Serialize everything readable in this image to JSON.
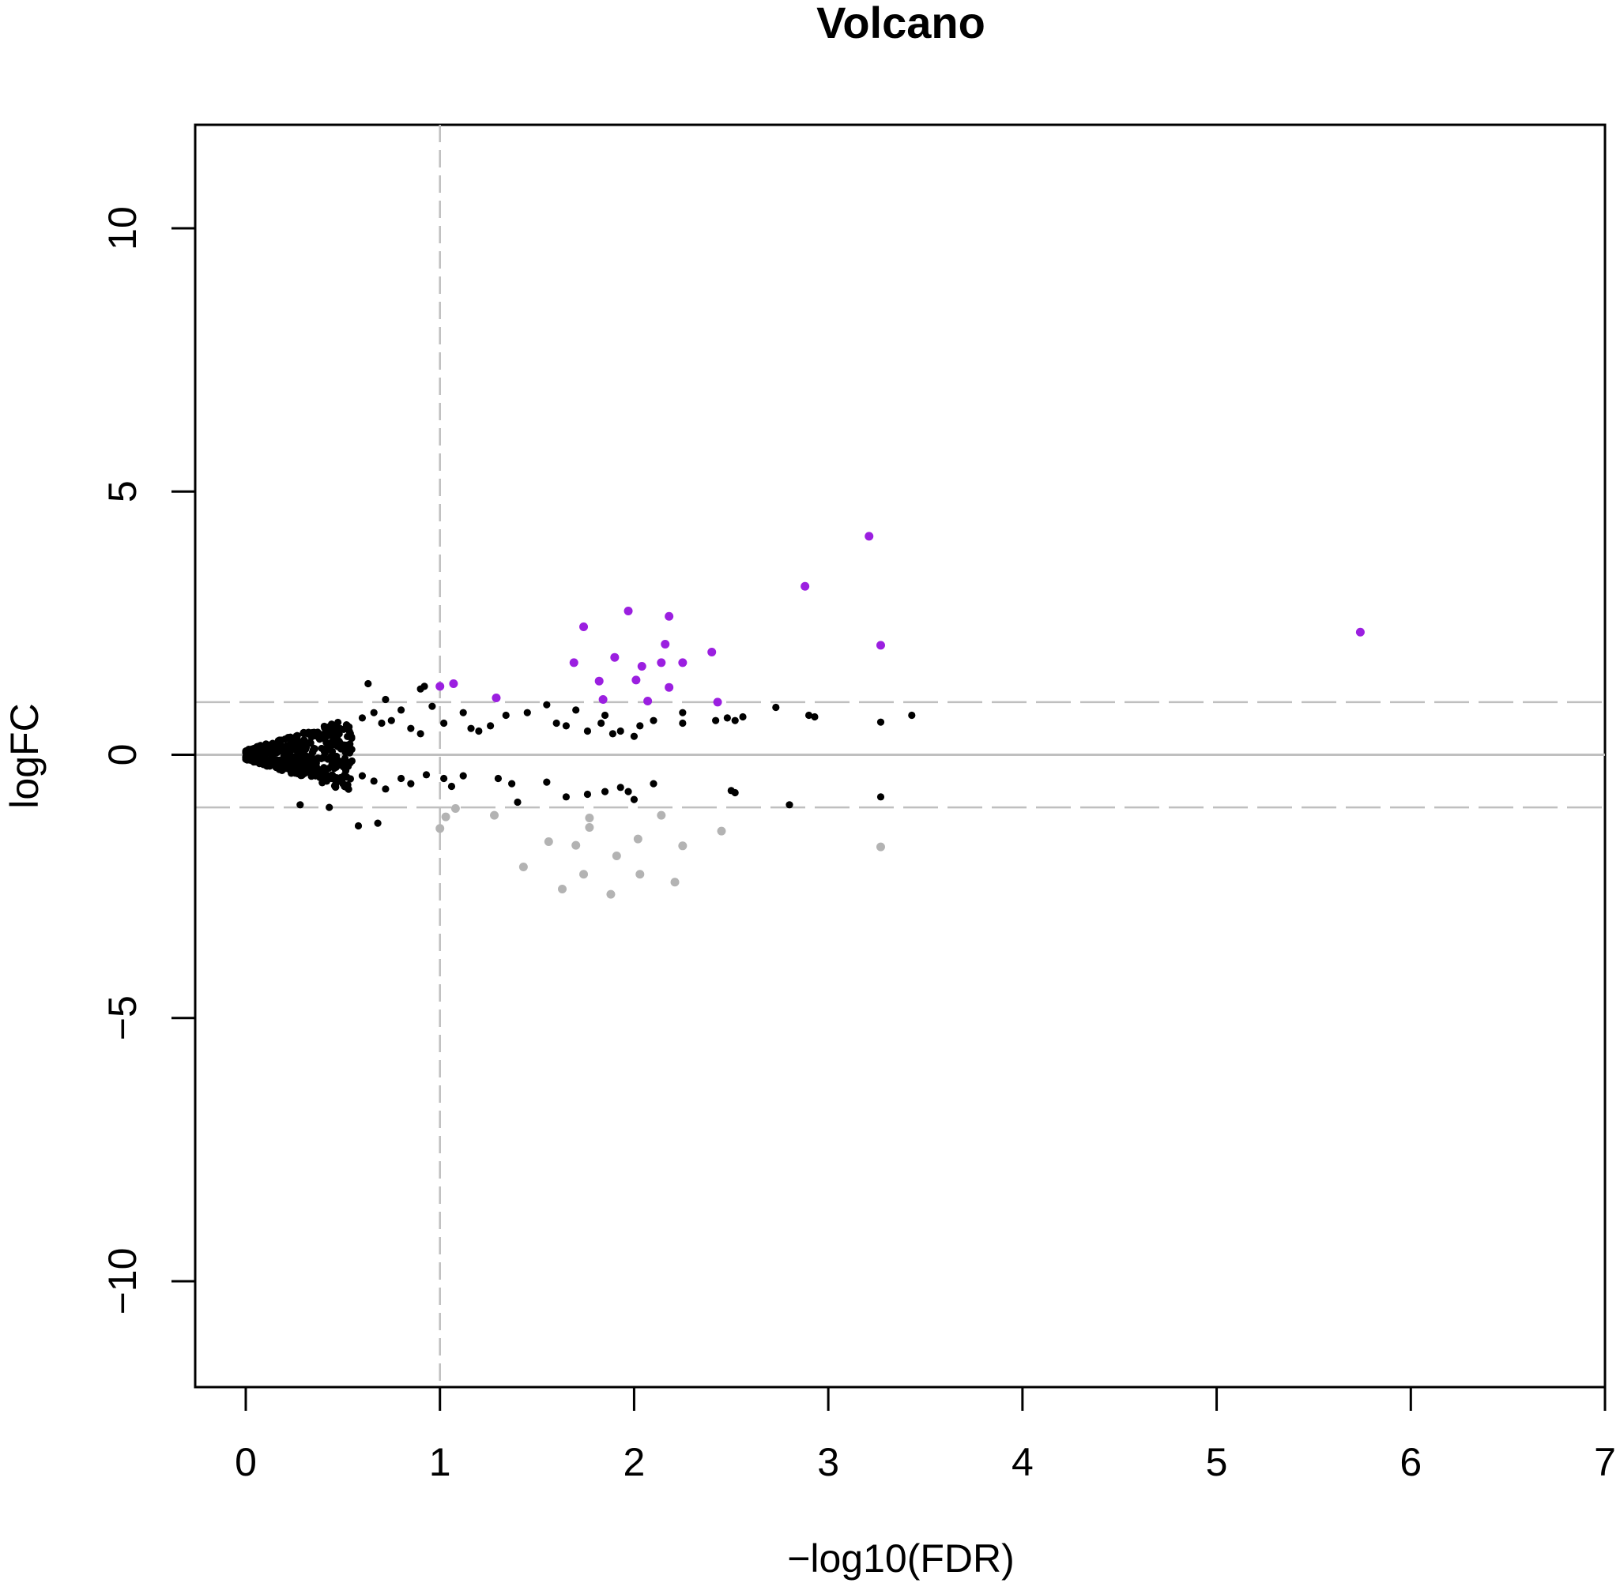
{
  "chart_data": {
    "type": "scatter",
    "title": "Volcano",
    "xlabel": "−log10(FDR)",
    "ylabel": "logFC",
    "xlim": [
      -0.28,
      7
    ],
    "ylim": [
      -12,
      12
    ],
    "xticks": [
      "0",
      "1",
      "2",
      "3",
      "4",
      "5",
      "6",
      "7"
    ],
    "yticks": [
      "−10",
      "−5",
      "0",
      "5",
      "10"
    ],
    "grid": false,
    "legend": "none",
    "reference_lines": {
      "vertical_dashed_x": 1,
      "horizontal_solid_y": 0,
      "horizontal_dashed_y": [
        1,
        -1
      ],
      "color": "#bfbfbf"
    },
    "colors": {
      "up": "#9b1fe0",
      "down": "#b3b3b3",
      "not_significant": "#000000"
    },
    "series": [
      {
        "group": "up",
        "points": [
          [
            1.0,
            1.3
          ],
          [
            1.07,
            1.35
          ],
          [
            1.29,
            1.08
          ],
          [
            1.69,
            1.75
          ],
          [
            1.74,
            2.43
          ],
          [
            1.82,
            1.4
          ],
          [
            1.84,
            1.05
          ],
          [
            1.9,
            1.85
          ],
          [
            1.97,
            2.73
          ],
          [
            2.01,
            1.42
          ],
          [
            2.04,
            1.68
          ],
          [
            2.07,
            1.02
          ],
          [
            2.14,
            1.75
          ],
          [
            2.16,
            2.1
          ],
          [
            2.18,
            2.63
          ],
          [
            2.18,
            1.28
          ],
          [
            2.25,
            1.75
          ],
          [
            2.4,
            1.95
          ],
          [
            2.43,
            1.0
          ],
          [
            2.88,
            3.2
          ],
          [
            3.21,
            4.15
          ],
          [
            3.27,
            2.08
          ],
          [
            5.74,
            2.33
          ]
        ]
      },
      {
        "group": "down",
        "points": [
          [
            1.0,
            -1.4
          ],
          [
            1.03,
            -1.18
          ],
          [
            1.08,
            -1.02
          ],
          [
            1.28,
            -1.15
          ],
          [
            1.43,
            -2.13
          ],
          [
            1.56,
            -1.65
          ],
          [
            1.63,
            -2.55
          ],
          [
            1.7,
            -1.72
          ],
          [
            1.74,
            -2.27
          ],
          [
            1.77,
            -1.38
          ],
          [
            1.77,
            -1.2
          ],
          [
            1.88,
            -2.65
          ],
          [
            1.91,
            -1.92
          ],
          [
            2.02,
            -1.6
          ],
          [
            2.03,
            -2.27
          ],
          [
            2.14,
            -1.15
          ],
          [
            2.21,
            -2.42
          ],
          [
            2.25,
            -1.73
          ],
          [
            2.45,
            -1.45
          ],
          [
            3.27,
            -1.75
          ]
        ]
      },
      {
        "group": "not_significant",
        "points": [
          [
            0.63,
            1.35
          ],
          [
            0.72,
            1.05
          ],
          [
            0.9,
            1.25
          ],
          [
            0.92,
            1.3
          ],
          [
            0.96,
            0.92
          ],
          [
            0.6,
            0.7
          ],
          [
            0.66,
            0.8
          ],
          [
            0.7,
            0.6
          ],
          [
            0.75,
            0.65
          ],
          [
            0.8,
            0.85
          ],
          [
            0.85,
            0.5
          ],
          [
            0.9,
            0.4
          ],
          [
            1.02,
            0.6
          ],
          [
            1.12,
            0.8
          ],
          [
            1.16,
            0.5
          ],
          [
            1.2,
            0.45
          ],
          [
            1.26,
            0.55
          ],
          [
            1.34,
            0.75
          ],
          [
            1.45,
            0.8
          ],
          [
            1.55,
            0.95
          ],
          [
            1.6,
            0.6
          ],
          [
            1.65,
            0.55
          ],
          [
            1.7,
            0.85
          ],
          [
            1.76,
            0.45
          ],
          [
            1.83,
            0.6
          ],
          [
            1.85,
            0.75
          ],
          [
            1.89,
            0.4
          ],
          [
            1.93,
            0.45
          ],
          [
            2.0,
            0.35
          ],
          [
            2.03,
            0.55
          ],
          [
            2.1,
            0.65
          ],
          [
            2.25,
            0.6
          ],
          [
            2.25,
            0.8
          ],
          [
            2.42,
            0.65
          ],
          [
            2.48,
            0.7
          ],
          [
            2.52,
            0.65
          ],
          [
            2.56,
            0.72
          ],
          [
            2.73,
            0.9
          ],
          [
            2.9,
            0.75
          ],
          [
            2.93,
            0.72
          ],
          [
            3.27,
            0.62
          ],
          [
            3.43,
            0.75
          ],
          [
            0.28,
            -0.95
          ],
          [
            0.43,
            -1.0
          ],
          [
            0.58,
            -1.35
          ],
          [
            0.68,
            -1.3
          ],
          [
            0.5,
            -0.55
          ],
          [
            0.6,
            -0.4
          ],
          [
            0.66,
            -0.5
          ],
          [
            0.72,
            -0.65
          ],
          [
            0.8,
            -0.45
          ],
          [
            0.85,
            -0.55
          ],
          [
            0.93,
            -0.38
          ],
          [
            1.02,
            -0.45
          ],
          [
            1.06,
            -0.6
          ],
          [
            1.12,
            -0.4
          ],
          [
            1.3,
            -0.45
          ],
          [
            1.37,
            -0.55
          ],
          [
            1.4,
            -0.9
          ],
          [
            1.55,
            -0.52
          ],
          [
            1.65,
            -0.8
          ],
          [
            1.76,
            -0.75
          ],
          [
            1.85,
            -0.7
          ],
          [
            1.93,
            -0.62
          ],
          [
            1.97,
            -0.7
          ],
          [
            2.0,
            -0.85
          ],
          [
            2.1,
            -0.55
          ],
          [
            2.5,
            -0.68
          ],
          [
            2.52,
            -0.72
          ],
          [
            2.8,
            -0.95
          ],
          [
            3.27,
            -0.8
          ]
        ]
      }
    ],
    "dense_cluster": {
      "description_hidden": true,
      "x_range": [
        0,
        0.55
      ],
      "y_envelope_max": 0.9,
      "color": "#000000"
    }
  }
}
